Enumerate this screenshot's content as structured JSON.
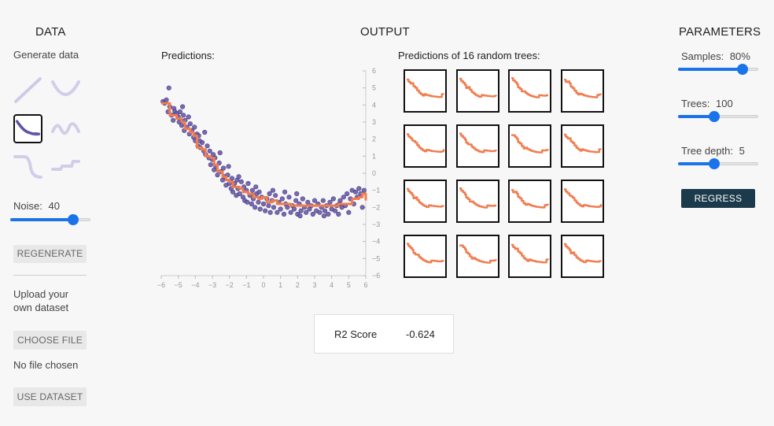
{
  "data_panel": {
    "title": "DATA",
    "generate_label": "Generate data",
    "noise_label": "Noise:",
    "noise_value": "40",
    "noise_fraction": 0.78,
    "regenerate_label": "REGENERATE",
    "upload_label_line1": "Upload your",
    "upload_label_line2": "own dataset",
    "choose_file_label": "CHOOSE FILE",
    "no_file_label": "No file chosen",
    "use_dataset_label": "USE DATASET"
  },
  "output_panel": {
    "title": "OUTPUT",
    "predictions_label": "Predictions:",
    "trees_label": "Predictions of 16 random trees:",
    "score_label": "R2 Score",
    "score_value": "-0.624"
  },
  "parameters_panel": {
    "title": "PARAMETERS",
    "samples_label": "Samples:",
    "samples_value": "80%",
    "samples_fraction": 0.8,
    "trees_label": "Trees:",
    "trees_value": "100",
    "trees_fraction": 0.45,
    "depth_label": "Tree depth:",
    "depth_value": "5",
    "depth_fraction": 0.45,
    "regress_label": "REGRESS"
  },
  "colors": {
    "accent": "#1a73e8",
    "prediction_line": "#f07c4f",
    "points": "#6a5aad",
    "button_dark": "#1b3a4b"
  },
  "chart_data": {
    "type": "scatter",
    "title": "",
    "xlim": [
      -6,
      6
    ],
    "ylim": [
      -6,
      6
    ],
    "x_ticks": [
      "−6",
      "−5",
      "−4",
      "−3",
      "−2",
      "−1",
      "0",
      "1",
      "2",
      "3",
      "4",
      "5",
      "6"
    ],
    "y_ticks": [
      "6",
      "5",
      "4",
      "3",
      "2",
      "1",
      "0",
      "−1",
      "−2",
      "−3",
      "−4",
      "−5",
      "−6"
    ],
    "points": [
      [
        -5.9,
        4.2
      ],
      [
        -5.8,
        4.1
      ],
      [
        -5.7,
        4.3
      ],
      [
        -5.6,
        3.6
      ],
      [
        -5.55,
        5.0
      ],
      [
        -5.5,
        3.9
      ],
      [
        -5.4,
        3.4
      ],
      [
        -5.3,
        3.1
      ],
      [
        -5.25,
        3.8
      ],
      [
        -5.2,
        3.6
      ],
      [
        -5.1,
        3.5
      ],
      [
        -5.0,
        3.3
      ],
      [
        -4.95,
        3.0
      ],
      [
        -4.9,
        3.6
      ],
      [
        -4.8,
        2.8
      ],
      [
        -4.7,
        3.4
      ],
      [
        -4.65,
        2.5
      ],
      [
        -4.6,
        3.1
      ],
      [
        -4.5,
        2.7
      ],
      [
        -4.4,
        3.3
      ],
      [
        -4.35,
        2.3
      ],
      [
        -4.3,
        2.9
      ],
      [
        -4.2,
        2.5
      ],
      [
        -4.1,
        2.1
      ],
      [
        -4.05,
        2.7
      ],
      [
        -4.0,
        1.9
      ],
      [
        -3.9,
        2.3
      ],
      [
        -3.85,
        1.6
      ],
      [
        -3.8,
        2.2
      ],
      [
        -3.7,
        1.5
      ],
      [
        -3.6,
        1.8
      ],
      [
        -3.5,
        1.3
      ],
      [
        -3.45,
        2.4
      ],
      [
        -3.4,
        1.1
      ],
      [
        -3.3,
        1.6
      ],
      [
        -3.2,
        0.9
      ],
      [
        -3.15,
        1.3
      ],
      [
        -3.1,
        0.5
      ],
      [
        -3.0,
        0.8
      ],
      [
        -2.9,
        0.2
      ],
      [
        -2.85,
        0.9
      ],
      [
        -2.8,
        0.4
      ],
      [
        -2.7,
        -0.1
      ],
      [
        -2.6,
        0.6
      ],
      [
        -2.55,
        1.2
      ],
      [
        -2.5,
        0.1
      ],
      [
        -2.4,
        -0.4
      ],
      [
        -2.35,
        0.3
      ],
      [
        -2.3,
        -0.2
      ],
      [
        -2.2,
        -0.7
      ],
      [
        -2.1,
        -0.1
      ],
      [
        -2.05,
        0.4
      ],
      [
        -2.0,
        -0.6
      ],
      [
        -1.9,
        -0.9
      ],
      [
        -1.85,
        -0.3
      ],
      [
        -1.8,
        -1.1
      ],
      [
        -1.7,
        -0.6
      ],
      [
        -1.6,
        -1.3
      ],
      [
        -1.55,
        -0.4
      ],
      [
        -1.5,
        -0.9
      ],
      [
        -1.4,
        -1.2
      ],
      [
        -1.3,
        -0.5
      ],
      [
        -1.2,
        -1.4
      ],
      [
        -1.15,
        -0.8
      ],
      [
        -1.1,
        -1.6
      ],
      [
        -1.0,
        -1.0
      ],
      [
        -0.95,
        -1.7
      ],
      [
        -0.9,
        -0.6
      ],
      [
        -0.8,
        -1.3
      ],
      [
        -0.7,
        -1.8
      ],
      [
        -0.65,
        -1.0
      ],
      [
        -0.6,
        -1.5
      ],
      [
        -0.5,
        -2.0
      ],
      [
        -0.4,
        -1.2
      ],
      [
        -0.3,
        -1.7
      ],
      [
        -0.25,
        -1.1
      ],
      [
        -0.2,
        -2.1
      ],
      [
        -0.1,
        -1.4
      ],
      [
        0.0,
        -1.8
      ],
      [
        0.1,
        -2.2
      ],
      [
        0.2,
        -1.5
      ],
      [
        0.3,
        -1.9
      ],
      [
        0.35,
        -1.2
      ],
      [
        0.4,
        -2.3
      ],
      [
        0.5,
        -1.6
      ],
      [
        0.6,
        -2.0
      ],
      [
        0.7,
        -1.3
      ],
      [
        0.8,
        -2.3
      ],
      [
        0.9,
        -1.7
      ],
      [
        1.0,
        -2.1
      ],
      [
        1.1,
        -1.5
      ],
      [
        1.2,
        -2.4
      ],
      [
        1.3,
        -1.8
      ],
      [
        1.4,
        -2.0
      ],
      [
        1.5,
        -1.4
      ],
      [
        1.6,
        -2.3
      ],
      [
        1.7,
        -1.9
      ],
      [
        1.8,
        -2.1
      ],
      [
        1.9,
        -1.6
      ],
      [
        2.0,
        -2.4
      ],
      [
        2.1,
        -1.8
      ],
      [
        2.2,
        -2.2
      ],
      [
        2.3,
        -1.5
      ],
      [
        2.4,
        -2.0
      ],
      [
        2.5,
        -2.3
      ],
      [
        2.6,
        -1.7
      ],
      [
        2.7,
        -2.1
      ],
      [
        2.8,
        -1.9
      ],
      [
        2.9,
        -2.4
      ],
      [
        3.0,
        -1.6
      ],
      [
        3.1,
        -2.2
      ],
      [
        3.2,
        -1.8
      ],
      [
        3.3,
        -2.3
      ],
      [
        3.4,
        -2.0
      ],
      [
        3.5,
        -1.6
      ],
      [
        3.6,
        -2.2
      ],
      [
        3.7,
        -1.9
      ],
      [
        3.8,
        -2.4
      ],
      [
        3.9,
        -1.7
      ],
      [
        4.0,
        -2.1
      ],
      [
        4.1,
        -1.5
      ],
      [
        4.2,
        -2.2
      ],
      [
        4.3,
        -1.9
      ],
      [
        4.4,
        -2.4
      ],
      [
        4.5,
        -1.6
      ],
      [
        4.6,
        -2.0
      ],
      [
        4.7,
        -1.4
      ],
      [
        4.8,
        -1.9
      ],
      [
        4.9,
        -1.2
      ],
      [
        5.0,
        -2.3
      ],
      [
        5.1,
        -1.5
      ],
      [
        5.2,
        -1.0
      ],
      [
        5.3,
        -1.8
      ],
      [
        5.4,
        -1.1
      ],
      [
        5.5,
        -1.4
      ],
      [
        5.6,
        -0.9
      ],
      [
        5.7,
        -1.2
      ],
      [
        5.8,
        -2.0
      ],
      [
        5.9,
        -1.0
      ],
      [
        -3.75,
        1.9
      ],
      [
        -2.95,
        1.1
      ],
      [
        -1.45,
        -0.2
      ],
      [
        0.55,
        -1.0
      ],
      [
        1.25,
        -1.1
      ],
      [
        2.15,
        -2.5
      ],
      [
        3.55,
        -2.5
      ],
      [
        -4.75,
        3.9
      ],
      [
        -0.45,
        -0.8
      ],
      [
        1.95,
        -1.2
      ],
      [
        4.45,
        -1.8
      ]
    ],
    "prediction": [
      [
        -6.0,
        4.1
      ],
      [
        -5.6,
        4.1
      ],
      [
        -5.5,
        3.4
      ],
      [
        -5.2,
        3.4
      ],
      [
        -5.1,
        3.2
      ],
      [
        -4.8,
        3.0
      ],
      [
        -4.6,
        2.6
      ],
      [
        -4.3,
        2.4
      ],
      [
        -4.1,
        2.2
      ],
      [
        -3.9,
        1.5
      ],
      [
        -3.6,
        1.4
      ],
      [
        -3.4,
        1.0
      ],
      [
        -3.1,
        0.9
      ],
      [
        -2.9,
        0.5
      ],
      [
        -2.7,
        0.1
      ],
      [
        -2.4,
        -0.2
      ],
      [
        -2.2,
        -0.4
      ],
      [
        -2.0,
        -0.5
      ],
      [
        -1.8,
        -0.8
      ],
      [
        -1.4,
        -0.9
      ],
      [
        -1.2,
        -1.1
      ],
      [
        -0.9,
        -1.2
      ],
      [
        -0.6,
        -1.4
      ],
      [
        -0.3,
        -1.5
      ],
      [
        -0.1,
        -1.4
      ],
      [
        0.2,
        -1.7
      ],
      [
        0.5,
        -1.6
      ],
      [
        0.8,
        -1.8
      ],
      [
        1.2,
        -1.8
      ],
      [
        1.6,
        -1.9
      ],
      [
        2.0,
        -1.9
      ],
      [
        2.5,
        -1.9
      ],
      [
        3.0,
        -1.9
      ],
      [
        3.5,
        -1.9
      ],
      [
        4.0,
        -1.9
      ],
      [
        4.4,
        -1.8
      ],
      [
        4.8,
        -1.8
      ],
      [
        5.2,
        -1.5
      ],
      [
        5.6,
        -1.4
      ],
      [
        5.8,
        -1.2
      ],
      [
        6.0,
        -1.6
      ]
    ],
    "tree_prediction_shape": [
      [
        -6.0,
        4.2
      ],
      [
        -5.4,
        3.5
      ],
      [
        -4.8,
        3.0
      ],
      [
        -4.2,
        2.4
      ],
      [
        -3.8,
        1.4
      ],
      [
        -3.2,
        1.0
      ],
      [
        -2.6,
        0.2
      ],
      [
        -2.0,
        -0.5
      ],
      [
        -1.4,
        -0.9
      ],
      [
        -0.8,
        -1.3
      ],
      [
        -0.2,
        -1.5
      ],
      [
        0.4,
        -1.7
      ],
      [
        1.2,
        -1.8
      ],
      [
        2.0,
        -1.9
      ],
      [
        3.0,
        -1.9
      ],
      [
        4.0,
        -1.9
      ],
      [
        4.8,
        -1.8
      ],
      [
        5.4,
        -1.5
      ],
      [
        6.0,
        -1.4
      ]
    ]
  }
}
